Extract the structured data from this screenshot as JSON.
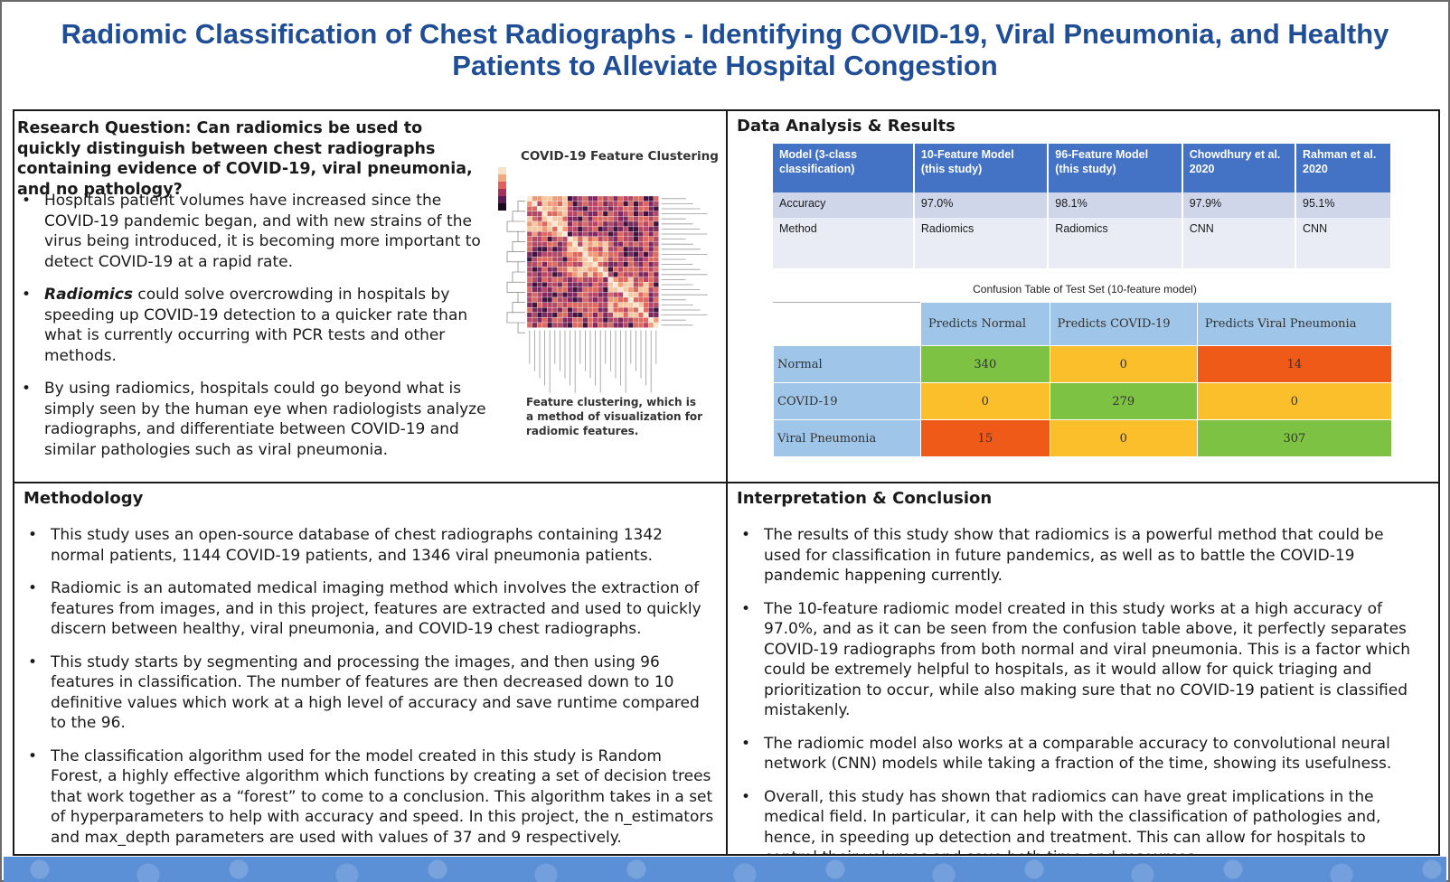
{
  "title_line1": "Radiomic Classification of Chest Radiographs - Identifying COVID-19, Viral Pneumonia, and Healthy",
  "title_line2": "Patients to Alleviate Hospital Congestion",
  "research": {
    "question": "Research Question: Can radiomics be used to quickly distinguish between chest radiographs containing evidence of COVID-19, viral pneumonia, and no pathology?",
    "bullets": [
      "Hospitals patient volumes have increased since the COVID-19 pandemic began, and with new strains of the virus being introduced, it is becoming more important to detect COVID-19 at a rapid rate.",
      {
        "em": "Radiomics",
        "rest": " could solve overcrowding in hospitals by speeding up COVID-19 detection to a quicker rate than what is currently occurring with PCR tests and other methods."
      },
      "By using radiomics, hospitals could go beyond what is simply seen by the human eye when radiologists analyze radiographs, and differentiate between COVID-19 and similar pathologies such as viral pneumonia."
    ],
    "figure_title": "COVID-19 Feature Clustering",
    "figure_caption": "Feature clustering, which is a method of visualization for radiomic features."
  },
  "results": {
    "title": "Data Analysis & Results",
    "acc_table": {
      "headers": [
        "Model (3-class classification)",
        "10-Feature Model (this study)",
        "96-Feature Model (this study)",
        "Chowdhury et al. 2020",
        "Rahman et al. 2020"
      ],
      "accuracy": [
        "Accuracy",
        "97.0%",
        "98.1%",
        "97.9%",
        "95.1%"
      ],
      "method": [
        "Method",
        "Radiomics",
        "Radiomics",
        "CNN",
        "CNN"
      ]
    },
    "confusion": {
      "title": "Confusion Table of Test Set (10-feature model)",
      "columns": [
        "Predicts Normal",
        "Predicts COVID-19",
        "Predicts Viral Pneumonia"
      ],
      "rows": [
        {
          "label": "Normal",
          "values": [
            "340",
            "0",
            "14"
          ]
        },
        {
          "label": "COVID-19",
          "values": [
            "0",
            "279",
            "0"
          ]
        },
        {
          "label": "Viral Pneumonia",
          "values": [
            "15",
            "0",
            "307"
          ]
        }
      ],
      "colors": {
        "green": "#7dc243",
        "yellow": "#fbbf2c",
        "red": "#f05a19"
      }
    }
  },
  "methodology": {
    "title": "Methodology",
    "bullets": [
      "This study uses an open-source database of chest radiographs containing 1342 normal patients, 1144 COVID-19 patients, and 1346 viral pneumonia patients.",
      "Radiomic is an automated medical imaging method which involves the extraction of features from images, and in this project, features are extracted and used to quickly discern between healthy, viral pneumonia, and COVID-19 chest radiographs.",
      "This study starts by segmenting and processing the images, and then using 96 features in classification. The number of features are then decreased down to 10 definitive values which work at a high level of accuracy and save runtime compared to the 96.",
      "The classification algorithm used for the model created in this study is Random Forest, a highly effective algorithm which functions by creating a set of decision trees that work together as a “forest” to come to a conclusion. This algorithm takes in a set of hyperparameters to help with accuracy and speed. In this project, the n_estimators and max_depth parameters are used with values of 37 and 9 respectively."
    ]
  },
  "conclusion": {
    "title": "Interpretation & Conclusion",
    "bullets": [
      "The results of this study show that radiomics is a powerful method that could be used for classification in future pandemics, as well as to battle the COVID-19 pandemic happening currently.",
      "The 10-feature radiomic model created in this study works at a high accuracy of 97.0%, and as it can be seen from the confusion table above, it perfectly separates COVID-19 radiographs from both normal and viral pneumonia. This is a factor which could be extremely helpful to hospitals, as it would allow for quick triaging and prioritization to occur, while also making sure that no COVID-19 patient is classified mistakenly.",
      "The radiomic model also works at a comparable accuracy to convolutional neural network (CNN) models while taking a fraction of the time, showing its usefulness.",
      "Overall, this study has shown that radiomics can have great implications in the medical field. In particular, it can help with the classification  of pathologies and, hence, in speeding up detection and treatment. This can allow for hospitals to control their volumes and save both time and resources."
    ]
  }
}
